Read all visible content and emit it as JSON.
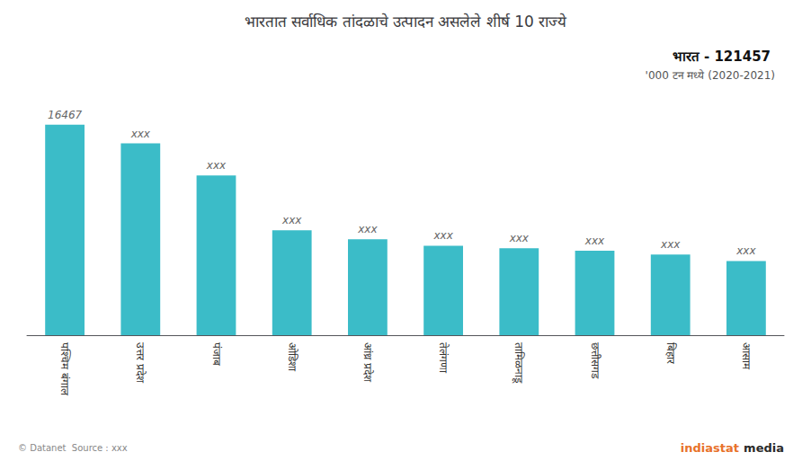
{
  "chart_data": {
    "type": "bar",
    "title": "भारतात सर्वाधिक तांदळाचे उत्पादन असलेले शीर्ष 10 राज्ये",
    "subtitle": "भारत - 121457",
    "annotations": [
      "'000 टन मध्ये (2020-2021)",
      "indiastat",
      "media",
      "© Datanet  Source : xxx"
    ],
    "categories": [
      "पश्चिम बंगाल",
      "उत्तर प्रदेश",
      "पंजाब",
      "ओडिशा",
      "आंध्र प्रदेश",
      "तेलंगणा",
      "तामिळनाडू",
      "छत्तीसगड",
      "बिहार",
      "आसाम"
    ],
    "values": [
      16467,
      15000,
      12500,
      8200,
      7500,
      7000,
      6800,
      6600,
      6300,
      5800
    ],
    "value_labels": [
      "16467",
      "xxx",
      "xxx",
      "xxx",
      "xxx",
      "xxx",
      "xxx",
      "xxx",
      "xxx",
      "xxx"
    ],
    "data_labels": true,
    "color": "#3bbcc8",
    "ylim": [
      0,
      22000
    ],
    "grid": false,
    "tick_labels": "x"
  }
}
